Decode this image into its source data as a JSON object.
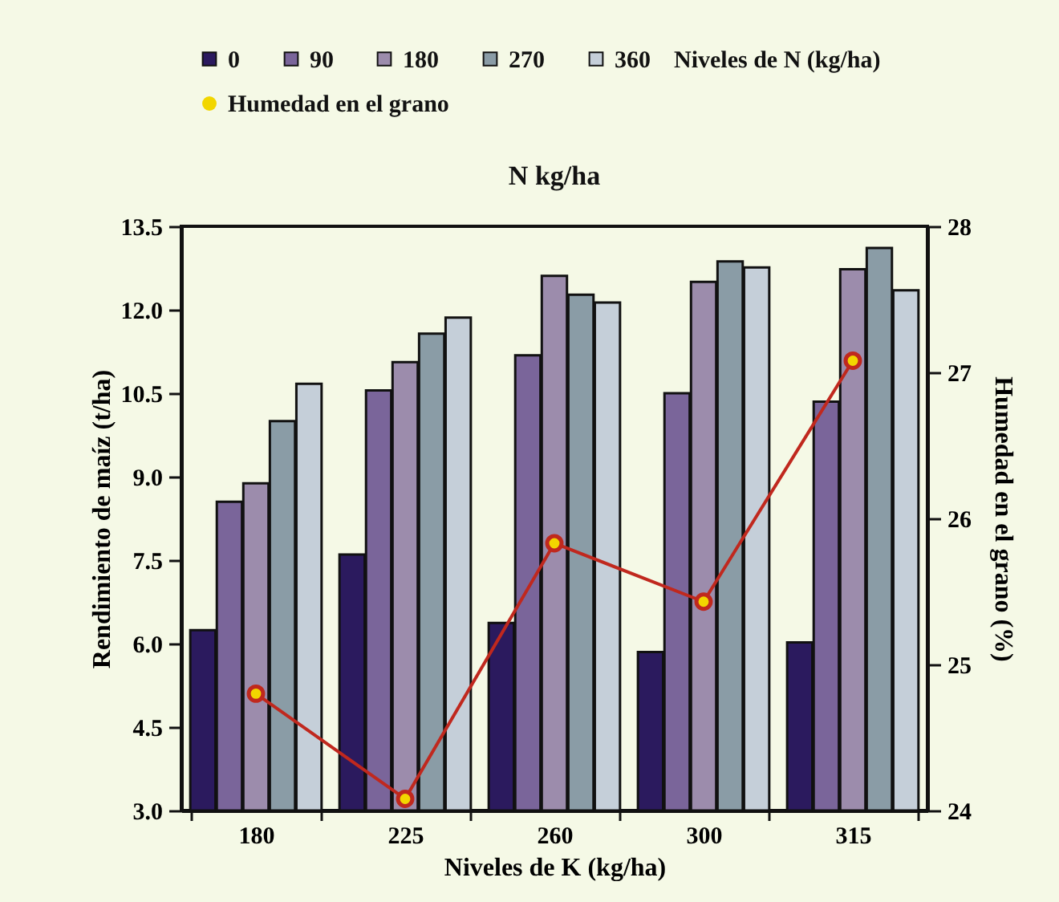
{
  "chart_data": {
    "type": "bar",
    "title": "N kg/ha",
    "xlabel": "Niveles de K (kg/ha)",
    "ylabel": "Rendimiento de maíz (t/ha)",
    "y2label": "Humedad en el grano (%)",
    "legend_title": "Niveles de N (kg/ha)",
    "legend": "top",
    "grid": false,
    "categories": [
      "180",
      "225",
      "260",
      "300",
      "315"
    ],
    "ylim": [
      3,
      13.5
    ],
    "yticks": [
      {
        "value": 3,
        "label": "3.0"
      },
      4.5,
      {
        "value": 6,
        "label": "6.0"
      },
      7.5,
      {
        "value": 9,
        "label": "9.0"
      },
      10.5,
      {
        "value": 12,
        "label": "12.0"
      },
      13.5
    ],
    "y2lim": [
      24,
      28
    ],
    "y2ticks": [
      24,
      25,
      26,
      27,
      28
    ],
    "series": [
      {
        "name": "0",
        "color": "#2b1a5e",
        "values": [
          6.24,
          7.6,
          6.37,
          5.85,
          6.02
        ]
      },
      {
        "name": "90",
        "color": "#7a659a",
        "values": [
          8.55,
          10.55,
          11.18,
          10.5,
          10.35
        ]
      },
      {
        "name": "180",
        "color": "#9c8cac",
        "values": [
          8.88,
          11.06,
          12.61,
          12.5,
          12.73
        ]
      },
      {
        "name": "270",
        "color": "#8a9ca6",
        "values": [
          10.0,
          11.57,
          12.27,
          12.87,
          13.11
        ]
      },
      {
        "name": "360",
        "color": "#c5cfd9",
        "values": [
          10.67,
          11.86,
          12.13,
          12.76,
          12.35
        ]
      },
      {
        "name": "Humedad en el grano",
        "type": "line",
        "axis": "y2",
        "marker": "circle",
        "color": "#c0281e",
        "values": [
          24.8,
          24.08,
          25.83,
          25.43,
          27.08
        ]
      }
    ]
  }
}
